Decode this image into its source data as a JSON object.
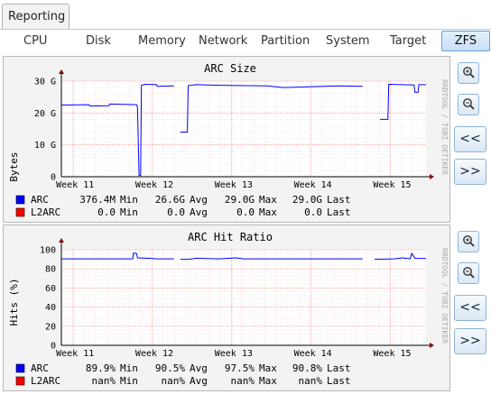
{
  "app": {
    "tab_label": "Reporting"
  },
  "subtabs": [
    {
      "label": "CPU"
    },
    {
      "label": "Disk"
    },
    {
      "label": "Memory"
    },
    {
      "label": "Network"
    },
    {
      "label": "Partition"
    },
    {
      "label": "System"
    },
    {
      "label": "Target"
    },
    {
      "label": "ZFS"
    }
  ],
  "active_tab": "ZFS",
  "side_buttons": {
    "zoom_in": "zoom-in-icon",
    "zoom_out": "zoom-out-icon",
    "back": "<<",
    "forward": ">>"
  },
  "watermark": "RRDTOOL / TOBI OETIKER",
  "colors": {
    "arc": "#0000ff",
    "l2arc": "#ff0000",
    "grid": "#ff9999",
    "accent": "#6aa2d8"
  },
  "chart_data": [
    {
      "type": "line",
      "title": "ARC Size",
      "ylabel": "Bytes",
      "ylim": [
        0,
        30
      ],
      "y_ticks": [
        {
          "v": 0,
          "label": "0"
        },
        {
          "v": 10,
          "label": "10 G"
        },
        {
          "v": 20,
          "label": "20 G"
        },
        {
          "v": 30,
          "label": "30 G"
        }
      ],
      "xlim": [
        0,
        4.6
      ],
      "x_ticks": [
        {
          "v": 0.15,
          "label": "Week 11"
        },
        {
          "v": 1.15,
          "label": "Week 12"
        },
        {
          "v": 2.15,
          "label": "Week 13"
        },
        {
          "v": 3.15,
          "label": "Week 14"
        },
        {
          "v": 4.15,
          "label": "Week 15"
        }
      ],
      "series": [
        {
          "name": "ARC",
          "color": "#0000ff",
          "segments": [
            [
              [
                0.0,
                22.5
              ],
              [
                0.35,
                22.6
              ],
              [
                0.36,
                22.2
              ],
              [
                0.6,
                22.3
              ],
              [
                0.61,
                22.8
              ],
              [
                0.95,
                22.6
              ],
              [
                0.96,
                21.8
              ],
              [
                0.98,
                0.4
              ],
              [
                1.0,
                0.4
              ],
              [
                1.01,
                28.6
              ],
              [
                1.05,
                29.0
              ],
              [
                1.2,
                28.9
              ],
              [
                1.21,
                28.4
              ],
              [
                1.42,
                28.5
              ]
            ],
            [
              [
                1.5,
                14.0
              ],
              [
                1.59,
                14.0
              ],
              [
                1.6,
                28.6
              ],
              [
                1.7,
                28.9
              ],
              [
                2.0,
                28.7
              ],
              [
                2.6,
                28.5
              ],
              [
                2.8,
                28.0
              ],
              [
                3.5,
                28.5
              ],
              [
                3.8,
                28.4
              ]
            ],
            [
              [
                4.02,
                18.0
              ],
              [
                4.12,
                18.0
              ],
              [
                4.13,
                29.0
              ],
              [
                4.45,
                28.8
              ],
              [
                4.46,
                26.5
              ],
              [
                4.5,
                26.5
              ],
              [
                4.51,
                28.9
              ],
              [
                4.6,
                28.9
              ]
            ]
          ],
          "min": "376.4M",
          "avg": "26.6G",
          "max": "29.0G",
          "last": "29.0G"
        },
        {
          "name": "L2ARC",
          "color": "#ff0000",
          "segments": [],
          "min": "0.0",
          "avg": "0.0",
          "max": "0.0",
          "last": "0.0"
        }
      ]
    },
    {
      "type": "line",
      "title": "ARC Hit Ratio",
      "ylabel": "Hits (%)",
      "ylim": [
        0,
        100
      ],
      "y_ticks": [
        {
          "v": 0,
          "label": "0"
        },
        {
          "v": 20,
          "label": "20"
        },
        {
          "v": 40,
          "label": "40"
        },
        {
          "v": 60,
          "label": "60"
        },
        {
          "v": 80,
          "label": "80"
        },
        {
          "v": 100,
          "label": "100"
        }
      ],
      "xlim": [
        0,
        4.6
      ],
      "x_ticks": [
        {
          "v": 0.15,
          "label": "Week 11"
        },
        {
          "v": 1.15,
          "label": "Week 12"
        },
        {
          "v": 2.15,
          "label": "Week 13"
        },
        {
          "v": 3.15,
          "label": "Week 14"
        },
        {
          "v": 4.15,
          "label": "Week 15"
        }
      ],
      "series": [
        {
          "name": "ARC",
          "color": "#0000ff",
          "segments": [
            [
              [
                0.0,
                90.5
              ],
              [
                0.9,
                90.5
              ],
              [
                0.91,
                96.5
              ],
              [
                0.95,
                96.0
              ],
              [
                0.96,
                91.5
              ],
              [
                1.1,
                91.0
              ],
              [
                1.2,
                90.5
              ],
              [
                1.42,
                90.5
              ]
            ],
            [
              [
                1.5,
                90.0
              ],
              [
                1.6,
                90.0
              ],
              [
                1.7,
                91.0
              ],
              [
                2.0,
                90.5
              ],
              [
                2.2,
                91.5
              ],
              [
                2.3,
                90.5
              ],
              [
                3.0,
                90.5
              ],
              [
                3.8,
                90.5
              ]
            ],
            [
              [
                3.95,
                90.0
              ],
              [
                4.2,
                90.5
              ],
              [
                4.3,
                91.5
              ],
              [
                4.4,
                90.5
              ],
              [
                4.42,
                96.0
              ],
              [
                4.46,
                91.0
              ],
              [
                4.6,
                90.8
              ]
            ]
          ],
          "min": "89.9%",
          "avg": "90.5%",
          "max": "97.5%",
          "last": "90.8%"
        },
        {
          "name": "L2ARC",
          "color": "#ff0000",
          "segments": [],
          "min": "nan%",
          "avg": "nan%",
          "max": "nan%",
          "last": "nan%"
        }
      ]
    }
  ],
  "legend_labels": {
    "min": "Min",
    "avg": "Avg",
    "max": "Max",
    "last": "Last"
  }
}
